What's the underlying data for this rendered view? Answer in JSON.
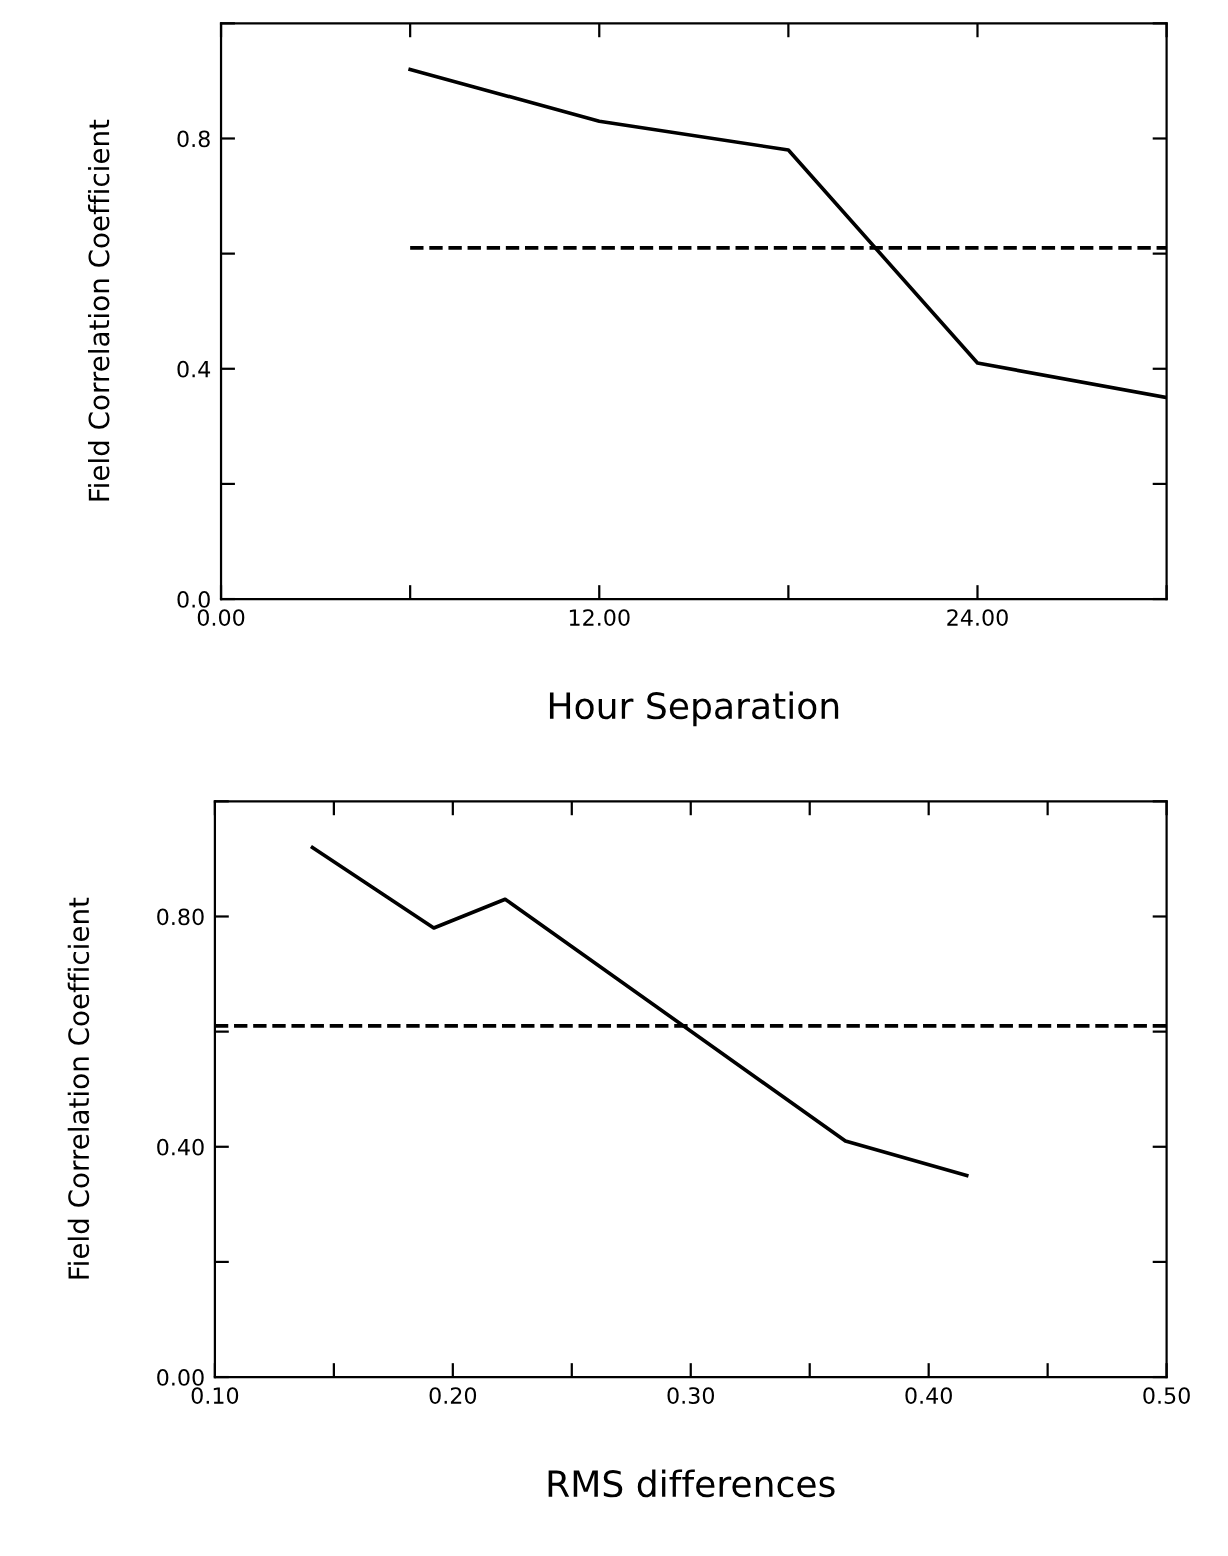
{
  "chart_data": [
    {
      "type": "line",
      "xlabel": "Hour Separation",
      "ylabel": "Field Correlation Coefficient",
      "series": [
        {
          "color": "#000000",
          "line_style": "solid",
          "x": [
            6,
            12,
            18,
            24,
            30
          ],
          "values": [
            0.92,
            0.83,
            0.78,
            0.41,
            0.35
          ]
        },
        {
          "color": "#000000",
          "line_style": "dashed",
          "x": [
            6,
            30
          ],
          "values": [
            0.61,
            0.61
          ]
        }
      ],
      "xlim": [
        0,
        30
      ],
      "ylim": [
        0,
        1.0
      ],
      "xticks": [
        {
          "value": 0,
          "label": "0.00"
        },
        {
          "value": 6,
          "label": null
        },
        {
          "value": 12,
          "label": "12.00"
        },
        {
          "value": 18,
          "label": null
        },
        {
          "value": 24,
          "label": "24.00"
        },
        {
          "value": 30,
          "label": null
        }
      ],
      "yticks": [
        {
          "value": 0,
          "label": "0.0"
        },
        {
          "value": 0.2,
          "label": null
        },
        {
          "value": 0.4,
          "label": "0.4"
        },
        {
          "value": 0.6,
          "label": null
        },
        {
          "value": 0.8,
          "label": "0.8"
        },
        {
          "value": 1.0,
          "label": null
        }
      ],
      "grid": false,
      "legend": false,
      "marker": "none"
    },
    {
      "type": "line",
      "xlabel": "RMS differences",
      "ylabel": "Field Correlation Coefficient",
      "series": [
        {
          "color": "#000000",
          "line_style": "solid",
          "x": [
            0.141,
            0.192,
            0.222,
            0.365,
            0.416
          ],
          "values": [
            0.92,
            0.78,
            0.83,
            0.41,
            0.35
          ]
        },
        {
          "color": "#000000",
          "line_style": "dashed",
          "x": [
            0.1,
            0.5
          ],
          "values": [
            0.61,
            0.61
          ]
        }
      ],
      "xlim": [
        0.1,
        0.5
      ],
      "ylim": [
        0,
        1.0
      ],
      "xticks": [
        {
          "value": 0.1,
          "label": "0.10"
        },
        {
          "value": 0.15,
          "label": null
        },
        {
          "value": 0.2,
          "label": "0.20"
        },
        {
          "value": 0.25,
          "label": null
        },
        {
          "value": 0.3,
          "label": "0.30"
        },
        {
          "value": 0.35,
          "label": null
        },
        {
          "value": 0.4,
          "label": "0.40"
        },
        {
          "value": 0.45,
          "label": null
        },
        {
          "value": 0.5,
          "label": "0.50"
        }
      ],
      "yticks": [
        {
          "value": 0,
          "label": "0.00"
        },
        {
          "value": 0.2,
          "label": null
        },
        {
          "value": 0.4,
          "label": "0.40"
        },
        {
          "value": 0.6,
          "label": null
        },
        {
          "value": 0.8,
          "label": "0.80"
        },
        {
          "value": 1.0,
          "label": null
        }
      ],
      "grid": false,
      "legend": false,
      "marker": "none"
    }
  ]
}
